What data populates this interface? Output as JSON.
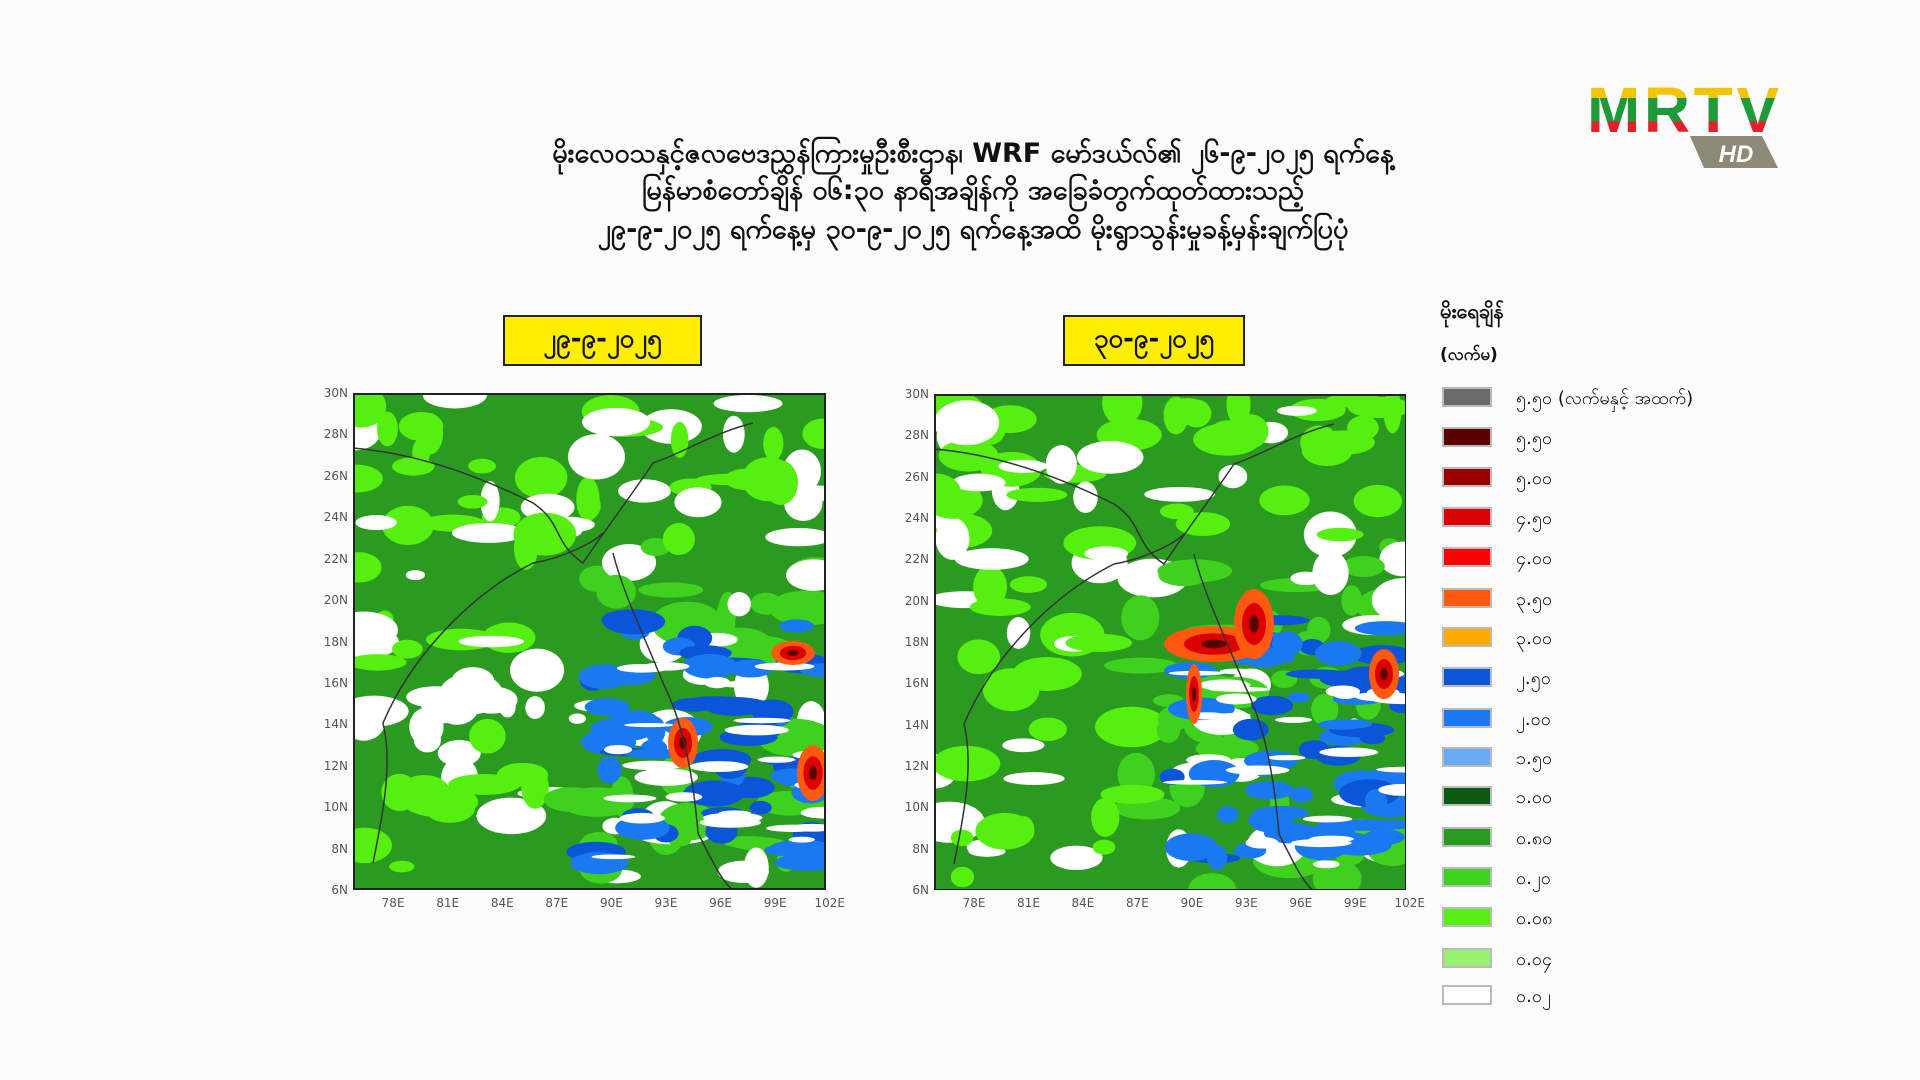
{
  "logo": {
    "brand": "MRTV",
    "badge": "HD",
    "colors": [
      "#f5c400",
      "#1f9a3a",
      "#e3212b"
    ]
  },
  "title_lines": [
    "မိုးလေဝသနှင့်ဇလဗေဒညွှန်ကြားမှုဦးစီးဌာန၊ WRF မော်ဒယ်လ်၏ ၂၆-၉-၂၀၂၅ ရက်နေ့",
    "မြန်မာစံတော်ချိန် ၀၆:၃၀ နာရီအချိန်ကို အခြေခံတွက်ထုတ်ထားသည့်",
    "၂၉-၉-၂၀၂၅ ရက်နေ့မှ ၃၀-၉-၂၀၂၅ ရက်နေ့အထိ မိုးရွာသွန်းမှုခန့်မှန်းချက်ပြပုံ"
  ],
  "maps": [
    {
      "date": "၂၉-၉-၂၀၂၅"
    },
    {
      "date": "၃၀-၉-၂၀၂၅"
    }
  ],
  "axes": {
    "y_ticks": [
      "30N",
      "28N",
      "26N",
      "24N",
      "22N",
      "20N",
      "18N",
      "16N",
      "14N",
      "12N",
      "10N",
      "8N",
      "6N"
    ],
    "x_ticks": [
      "78E",
      "81E",
      "84E",
      "87E",
      "90E",
      "93E",
      "96E",
      "99E",
      "102E"
    ]
  },
  "legend": {
    "title": "မိုးရေချိန်",
    "unit": "(လက်မ)",
    "items": [
      {
        "label": "၅.၅၀ (လက်မနှင့် အထက်)",
        "color": "#6b6b6b"
      },
      {
        "label": "၅.၅၀",
        "color": "#5a0000"
      },
      {
        "label": "၅.၀၀",
        "color": "#9a0000"
      },
      {
        "label": "၄.၅၀",
        "color": "#dd0000"
      },
      {
        "label": "၄.၀၀",
        "color": "#ff0000"
      },
      {
        "label": "၃.၅၀",
        "color": "#ff5a10"
      },
      {
        "label": "၃.၀၀",
        "color": "#ffaa00"
      },
      {
        "label": "၂.၅၀",
        "color": "#0a55d8"
      },
      {
        "label": "၂.၀၀",
        "color": "#1a78f0"
      },
      {
        "label": "၁.၅၀",
        "color": "#6aaaf5"
      },
      {
        "label": "၁.၀၀",
        "color": "#0c5a12"
      },
      {
        "label": "၀.၈၀",
        "color": "#2a9a20"
      },
      {
        "label": "၀.၂၀",
        "color": "#3ed21e"
      },
      {
        "label": "၀.၀၈",
        "color": "#55f010"
      },
      {
        "label": "၀.၀၄",
        "color": "#9af070"
      },
      {
        "label": "၀.၀၂",
        "color": "#ffffff"
      }
    ]
  }
}
